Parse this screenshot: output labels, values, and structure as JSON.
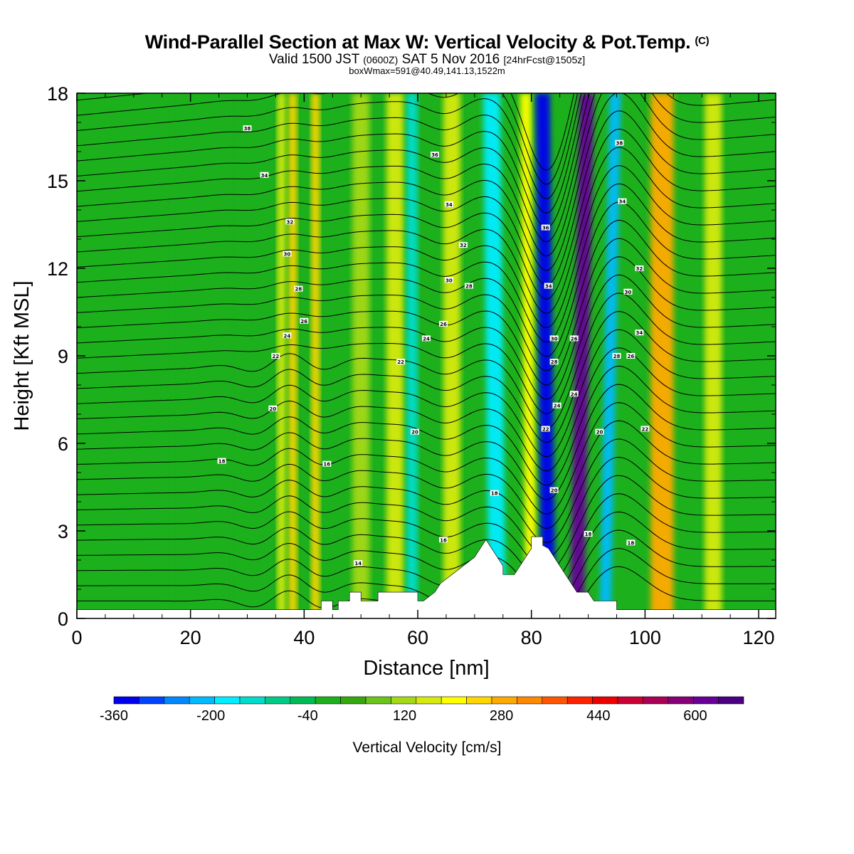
{
  "title": {
    "main": "Wind-Parallel Section at Max W: Vertical Velocity & Pot.Temp.",
    "copyright": "(C)",
    "valid_prefix": "Valid 1500 JST",
    "valid_z": "(0600Z)",
    "valid_date": "SAT 5 Nov 2016",
    "forecast": "[24hrFcst@1505z]",
    "boxmax": "boxWmax=591@40.49,141.13,1522m"
  },
  "chart_data": {
    "type": "heatmap",
    "xlabel": "Distance [nm]",
    "ylabel": "Height [Kft MSL]",
    "xlim": [
      0,
      123
    ],
    "ylim": [
      0,
      18
    ],
    "xticks": [
      0,
      20,
      40,
      60,
      80,
      100,
      120
    ],
    "yticks": [
      0,
      3,
      6,
      9,
      12,
      15,
      18
    ],
    "colorbar": {
      "label": "Vertical Velocity [cm/s]",
      "min": -360,
      "max": 680,
      "step": 40,
      "tick_labels": [
        -360,
        -200,
        -40,
        120,
        280,
        440,
        600
      ],
      "colors": [
        "#0000ee",
        "#0044ff",
        "#0088ff",
        "#00bbff",
        "#00eeff",
        "#00ddcc",
        "#00cc88",
        "#00bb55",
        "#1db01d",
        "#34a80e",
        "#6cc41a",
        "#a3d917",
        "#d6ea0f",
        "#ffff00",
        "#ffd700",
        "#ffaa00",
        "#ff8800",
        "#ff5500",
        "#ff2200",
        "#ee0000",
        "#cc0033",
        "#aa0055",
        "#880077",
        "#660099",
        "#4b0082"
      ]
    },
    "velocity_bands": [
      {
        "x": 22,
        "w": 10,
        "value": -40
      },
      {
        "x": 36,
        "w": 1.5,
        "value": 120
      },
      {
        "x": 38,
        "w": 1.5,
        "value": 200
      },
      {
        "x": 42,
        "w": 1.5,
        "value": 200
      },
      {
        "x": 50,
        "w": 3,
        "value": 80
      },
      {
        "x": 56,
        "w": 3,
        "value": 120
      },
      {
        "x": 59,
        "w": 2,
        "value": -160
      },
      {
        "x": 66,
        "w": 3,
        "value": 120
      },
      {
        "x": 74,
        "w": 3,
        "value": -200
      },
      {
        "x": 80,
        "w": 2,
        "value": 160
      },
      {
        "x": 83,
        "w": 2.5,
        "value": -360
      },
      {
        "x": 88,
        "w": 2.5,
        "value": 560
      },
      {
        "x": 93,
        "w": 2,
        "value": -240
      },
      {
        "x": 103,
        "w": 4,
        "value": 240
      },
      {
        "x": 112,
        "w": 3,
        "value": 120
      }
    ],
    "isentrope_labels": [
      {
        "x": 30,
        "y": 16.8,
        "text": "38"
      },
      {
        "x": 33,
        "y": 15.2,
        "text": "34"
      },
      {
        "x": 37.5,
        "y": 13.6,
        "text": "32"
      },
      {
        "x": 37,
        "y": 12.5,
        "text": "30"
      },
      {
        "x": 39,
        "y": 11.3,
        "text": "28"
      },
      {
        "x": 40,
        "y": 10.2,
        "text": "26"
      },
      {
        "x": 37,
        "y": 9.7,
        "text": "24"
      },
      {
        "x": 35,
        "y": 9.0,
        "text": "22"
      },
      {
        "x": 34.5,
        "y": 7.2,
        "text": "20"
      },
      {
        "x": 25.5,
        "y": 5.4,
        "text": "18"
      },
      {
        "x": 44,
        "y": 5.3,
        "text": "16"
      },
      {
        "x": 49.5,
        "y": 1.9,
        "text": "14"
      },
      {
        "x": 57,
        "y": 8.8,
        "text": "22"
      },
      {
        "x": 59.5,
        "y": 6.4,
        "text": "20"
      },
      {
        "x": 64.5,
        "y": 2.7,
        "text": "16"
      },
      {
        "x": 73.5,
        "y": 4.3,
        "text": "18"
      },
      {
        "x": 63,
        "y": 15.9,
        "text": "36"
      },
      {
        "x": 65.5,
        "y": 14.2,
        "text": "34"
      },
      {
        "x": 68,
        "y": 12.8,
        "text": "32"
      },
      {
        "x": 65.5,
        "y": 11.6,
        "text": "30"
      },
      {
        "x": 69,
        "y": 11.4,
        "text": "28"
      },
      {
        "x": 64.5,
        "y": 10.1,
        "text": "26"
      },
      {
        "x": 61.5,
        "y": 9.6,
        "text": "24"
      },
      {
        "x": 82.5,
        "y": 13.4,
        "text": "36"
      },
      {
        "x": 83,
        "y": 11.4,
        "text": "34"
      },
      {
        "x": 84,
        "y": 9.6,
        "text": "30"
      },
      {
        "x": 84,
        "y": 8.8,
        "text": "28"
      },
      {
        "x": 84.5,
        "y": 7.3,
        "text": "24"
      },
      {
        "x": 82.5,
        "y": 6.5,
        "text": "22"
      },
      {
        "x": 84,
        "y": 4.4,
        "text": "20"
      },
      {
        "x": 87.5,
        "y": 9.6,
        "text": "26"
      },
      {
        "x": 87.5,
        "y": 7.7,
        "text": "24"
      },
      {
        "x": 90,
        "y": 2.9,
        "text": "18"
      },
      {
        "x": 92,
        "y": 6.4,
        "text": "20"
      },
      {
        "x": 95.5,
        "y": 16.3,
        "text": "38"
      },
      {
        "x": 96,
        "y": 14.3,
        "text": "34"
      },
      {
        "x": 99,
        "y": 12.0,
        "text": "32"
      },
      {
        "x": 97,
        "y": 11.2,
        "text": "30"
      },
      {
        "x": 99,
        "y": 9.8,
        "text": "34"
      },
      {
        "x": 95,
        "y": 9.0,
        "text": "28"
      },
      {
        "x": 97.5,
        "y": 9.0,
        "text": "26"
      },
      {
        "x": 100,
        "y": 6.5,
        "text": "22"
      },
      {
        "x": 97.5,
        "y": 2.6,
        "text": "18"
      }
    ]
  }
}
